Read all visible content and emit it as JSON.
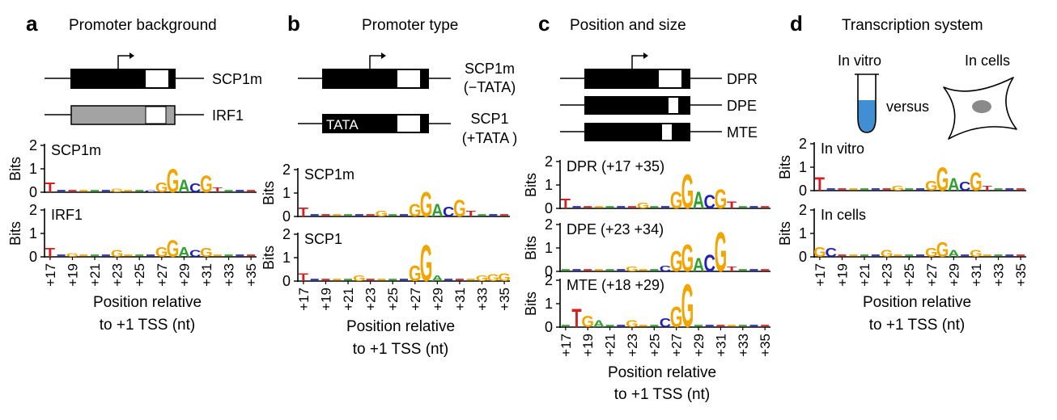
{
  "colors": {
    "A": "#2ea02e",
    "C": "#2323b4",
    "G": "#f2a500",
    "T": "#d21f1f",
    "box": "#000000",
    "gray": "#a3a3a3",
    "tube": "#3f8fd2",
    "cell_nucleus": "#8a8a8a"
  },
  "x_ticks": [
    "+17",
    "+19",
    "+21",
    "+23",
    "+25",
    "+27",
    "+29",
    "+31",
    "+33",
    "+35"
  ],
  "common": {
    "bits_label": "Bits",
    "xlabel_line1": "Position relative",
    "xlabel_line2": "to +1 TSS (nt)",
    "versus": "versus",
    "in_vitro_icon": "In vitro",
    "in_cells_icon": "In cells"
  },
  "panels": {
    "a": {
      "letter": "a",
      "title": "Promoter background",
      "constructs": [
        "SCP1m",
        "IRF1"
      ],
      "logo_labels": [
        "SCP1m",
        "IRF1"
      ]
    },
    "b": {
      "letter": "b",
      "title": "Promoter type",
      "constructs": [
        {
          "line1": "SCP1m",
          "line2": "(−TATA)"
        },
        {
          "line1": "SCP1",
          "line2": "(+TATA )"
        }
      ],
      "tata": "TATA",
      "logo_labels": [
        "SCP1m",
        "SCP1"
      ]
    },
    "c": {
      "letter": "c",
      "title": "Position and size",
      "constructs": [
        "DPR",
        "DPE",
        "MTE"
      ],
      "logo_labels": [
        "DPR (+17 +35)",
        "DPE (+23 +34)",
        "MTE (+18 +29)"
      ]
    },
    "d": {
      "letter": "d",
      "title": "Transcription system",
      "logo_labels": [
        "In vitro",
        "In cells"
      ]
    }
  },
  "chart_data": [
    {
      "type": "sequence-logo",
      "panel": "a",
      "label": "SCP1m",
      "ylabel": "Bits",
      "ylim": [
        0,
        2
      ],
      "yticks": [
        0,
        1,
        2
      ],
      "xlabel": "Position relative to +1 TSS (nt)",
      "x_ticks": [
        "+17",
        "+19",
        "+21",
        "+23",
        "+25",
        "+27",
        "+29",
        "+31",
        "+33",
        "+35"
      ],
      "columns": [
        {
          "pos": 17,
          "letters": [
            [
              "T",
              0.45
            ]
          ]
        },
        {
          "pos": 23,
          "letters": [
            [
              "G",
              0.15
            ]
          ]
        },
        {
          "pos": 26,
          "letters": [
            [
              "C",
              0.1
            ]
          ]
        },
        {
          "pos": 27,
          "letters": [
            [
              "G",
              0.45
            ]
          ]
        },
        {
          "pos": 28,
          "letters": [
            [
              "G",
              1.05
            ]
          ]
        },
        {
          "pos": 29,
          "letters": [
            [
              "A",
              0.55
            ]
          ]
        },
        {
          "pos": 30,
          "letters": [
            [
              "C",
              0.4
            ]
          ]
        },
        {
          "pos": 31,
          "letters": [
            [
              "G",
              0.75
            ]
          ]
        },
        {
          "pos": 32,
          "letters": [
            [
              "T",
              0.2
            ]
          ]
        }
      ]
    },
    {
      "type": "sequence-logo",
      "panel": "a",
      "label": "IRF1",
      "ylabel": "Bits",
      "ylim": [
        0,
        2
      ],
      "yticks": [
        0,
        1,
        2
      ],
      "columns": [
        {
          "pos": 17,
          "letters": [
            [
              "T",
              0.4
            ]
          ]
        },
        {
          "pos": 19,
          "letters": [
            [
              "G",
              0.15
            ]
          ]
        },
        {
          "pos": 23,
          "letters": [
            [
              "G",
              0.3
            ]
          ]
        },
        {
          "pos": 27,
          "letters": [
            [
              "G",
              0.45
            ]
          ]
        },
        {
          "pos": 28,
          "letters": [
            [
              "G",
              0.75
            ]
          ]
        },
        {
          "pos": 29,
          "letters": [
            [
              "A",
              0.45
            ]
          ]
        },
        {
          "pos": 30,
          "letters": [
            [
              "C",
              0.3
            ]
          ]
        },
        {
          "pos": 31,
          "letters": [
            [
              "G",
              0.4
            ]
          ]
        }
      ]
    },
    {
      "type": "sequence-logo",
      "panel": "b",
      "label": "SCP1m",
      "ylabel": "Bits",
      "ylim": [
        0,
        2
      ],
      "yticks": [
        0,
        1,
        2
      ],
      "columns": [
        {
          "pos": 17,
          "letters": [
            [
              "T",
              0.4
            ]
          ]
        },
        {
          "pos": 24,
          "letters": [
            [
              "G",
              0.25
            ]
          ]
        },
        {
          "pos": 27,
          "letters": [
            [
              "G",
              0.55
            ]
          ]
        },
        {
          "pos": 28,
          "letters": [
            [
              "G",
              1.1
            ]
          ]
        },
        {
          "pos": 29,
          "letters": [
            [
              "A",
              0.55
            ]
          ]
        },
        {
          "pos": 30,
          "letters": [
            [
              "C",
              0.45
            ]
          ]
        },
        {
          "pos": 31,
          "letters": [
            [
              "G",
              0.75
            ]
          ]
        },
        {
          "pos": 32,
          "letters": [
            [
              "T",
              0.25
            ]
          ]
        }
      ]
    },
    {
      "type": "sequence-logo",
      "panel": "b",
      "label": "SCP1",
      "ylabel": "Bits",
      "ylim": [
        0,
        2
      ],
      "yticks": [
        0,
        1,
        2
      ],
      "columns": [
        {
          "pos": 17,
          "letters": [
            [
              "T",
              0.35
            ]
          ]
        },
        {
          "pos": 22,
          "letters": [
            [
              "G",
              0.25
            ]
          ]
        },
        {
          "pos": 27,
          "letters": [
            [
              "G",
              0.7
            ]
          ]
        },
        {
          "pos": 28,
          "letters": [
            [
              "G",
              1.6
            ]
          ]
        },
        {
          "pos": 29,
          "letters": [
            [
              "A",
              0.25
            ]
          ]
        },
        {
          "pos": 33,
          "letters": [
            [
              "G",
              0.25
            ]
          ]
        },
        {
          "pos": 34,
          "letters": [
            [
              "G",
              0.3
            ]
          ]
        },
        {
          "pos": 35,
          "letters": [
            [
              "G",
              0.35
            ]
          ]
        }
      ]
    },
    {
      "type": "sequence-logo",
      "panel": "c",
      "label": "DPR (+17 +35)",
      "ylabel": "Bits",
      "ylim": [
        0,
        2
      ],
      "yticks": [
        0,
        1,
        2
      ],
      "columns": [
        {
          "pos": 17,
          "letters": [
            [
              "T",
              0.45
            ]
          ]
        },
        {
          "pos": 24,
          "letters": [
            [
              "G",
              0.25
            ]
          ]
        },
        {
          "pos": 27,
          "letters": [
            [
              "G",
              0.75
            ]
          ]
        },
        {
          "pos": 28,
          "letters": [
            [
              "G",
              1.5
            ]
          ]
        },
        {
          "pos": 29,
          "letters": [
            [
              "A",
              0.75
            ]
          ]
        },
        {
          "pos": 30,
          "letters": [
            [
              "C",
              0.6
            ]
          ]
        },
        {
          "pos": 31,
          "letters": [
            [
              "G",
              0.85
            ]
          ]
        },
        {
          "pos": 32,
          "letters": [
            [
              "T",
              0.3
            ]
          ]
        }
      ]
    },
    {
      "type": "sequence-logo",
      "panel": "c",
      "label": "DPE (+23 +34)",
      "ylabel": "Bits",
      "ylim": [
        0,
        2
      ],
      "yticks": [
        0,
        1,
        2
      ],
      "columns": [
        {
          "pos": 23,
          "letters": [
            [
              "G",
              0.2
            ]
          ]
        },
        {
          "pos": 26,
          "letters": [
            [
              "C",
              0.25
            ]
          ]
        },
        {
          "pos": 27,
          "letters": [
            [
              "G",
              0.9
            ]
          ]
        },
        {
          "pos": 28,
          "letters": [
            [
              "G",
              1.2
            ]
          ]
        },
        {
          "pos": 29,
          "letters": [
            [
              "A",
              0.6
            ]
          ]
        },
        {
          "pos": 30,
          "letters": [
            [
              "C",
              0.75
            ]
          ]
        },
        {
          "pos": 31,
          "letters": [
            [
              "G",
              1.75
            ]
          ]
        },
        {
          "pos": 32,
          "letters": [
            [
              "T",
              0.2
            ]
          ]
        }
      ]
    },
    {
      "type": "sequence-logo",
      "panel": "c",
      "label": "MTE (+18 +29)",
      "ylabel": "Bits",
      "ylim": [
        0,
        2
      ],
      "yticks": [
        0,
        1,
        2
      ],
      "columns": [
        {
          "pos": 18,
          "letters": [
            [
              "T",
              0.8
            ]
          ]
        },
        {
          "pos": 19,
          "letters": [
            [
              "G",
              0.5
            ]
          ]
        },
        {
          "pos": 20,
          "letters": [
            [
              "A",
              0.3
            ]
          ]
        },
        {
          "pos": 23,
          "letters": [
            [
              "G",
              0.3
            ]
          ]
        },
        {
          "pos": 26,
          "letters": [
            [
              "C",
              0.4
            ]
          ]
        },
        {
          "pos": 27,
          "letters": [
            [
              "G",
              0.9
            ]
          ]
        },
        {
          "pos": 28,
          "letters": [
            [
              "G",
              1.9
            ]
          ]
        }
      ]
    },
    {
      "type": "sequence-logo",
      "panel": "d",
      "label": "In vitro",
      "ylabel": "Bits",
      "ylim": [
        0,
        2
      ],
      "yticks": [
        0,
        1,
        2
      ],
      "columns": [
        {
          "pos": 17,
          "letters": [
            [
              "T",
              0.6
            ]
          ]
        },
        {
          "pos": 24,
          "letters": [
            [
              "G",
              0.2
            ]
          ]
        },
        {
          "pos": 27,
          "letters": [
            [
              "G",
              0.45
            ]
          ]
        },
        {
          "pos": 28,
          "letters": [
            [
              "G",
              1.05
            ]
          ]
        },
        {
          "pos": 29,
          "letters": [
            [
              "A",
              0.55
            ]
          ]
        },
        {
          "pos": 30,
          "letters": [
            [
              "C",
              0.4
            ]
          ]
        },
        {
          "pos": 31,
          "letters": [
            [
              "G",
              0.8
            ]
          ]
        },
        {
          "pos": 32,
          "letters": [
            [
              "T",
              0.2
            ]
          ]
        }
      ]
    },
    {
      "type": "sequence-logo",
      "panel": "d",
      "label": "In cells",
      "ylabel": "Bits",
      "ylim": [
        0,
        2
      ],
      "yticks": [
        0,
        1,
        2
      ],
      "columns": [
        {
          "pos": 17,
          "letters": [
            [
              "G",
              0.45
            ]
          ]
        },
        {
          "pos": 18,
          "letters": [
            [
              "C",
              0.4
            ]
          ]
        },
        {
          "pos": 23,
          "letters": [
            [
              "G",
              0.3
            ]
          ]
        },
        {
          "pos": 27,
          "letters": [
            [
              "G",
              0.4
            ]
          ]
        },
        {
          "pos": 28,
          "letters": [
            [
              "G",
              0.65
            ]
          ]
        },
        {
          "pos": 29,
          "letters": [
            [
              "A",
              0.3
            ]
          ]
        },
        {
          "pos": 31,
          "letters": [
            [
              "G",
              0.3
            ]
          ]
        }
      ]
    }
  ]
}
